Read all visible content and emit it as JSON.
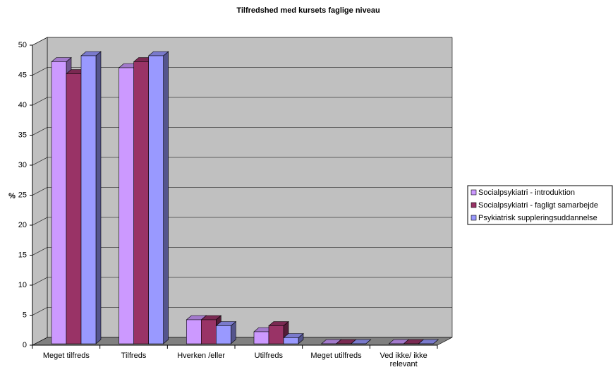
{
  "chart_data": {
    "type": "bar3d",
    "title": "Tilfredshed med kursets faglige niveau",
    "y_label": "%",
    "categories": [
      "Meget tilfreds",
      "Tilfreds",
      "Hverken /eller",
      "Utilfreds",
      "Meget utilfreds",
      "Ved ikke/ ikke relevant"
    ],
    "series": [
      {
        "name": "Socialpsykiatri - introduktion",
        "color": "#cc99ff",
        "values": [
          47,
          46,
          4,
          2,
          0,
          0
        ]
      },
      {
        "name": "Socialpsykiatri - fagligt samarbejde",
        "color": "#993366",
        "values": [
          45,
          47,
          4,
          3,
          0,
          0
        ]
      },
      {
        "name": "Psykiatrisk suppleringsuddannelse",
        "color": "#9999ff",
        "values": [
          48,
          48,
          3,
          1,
          0,
          0
        ]
      }
    ],
    "ylim": [
      0,
      50
    ],
    "yticks": [
      0,
      5,
      10,
      15,
      20,
      25,
      30,
      35,
      40,
      45,
      50
    ],
    "grid": true,
    "legend": "right"
  }
}
